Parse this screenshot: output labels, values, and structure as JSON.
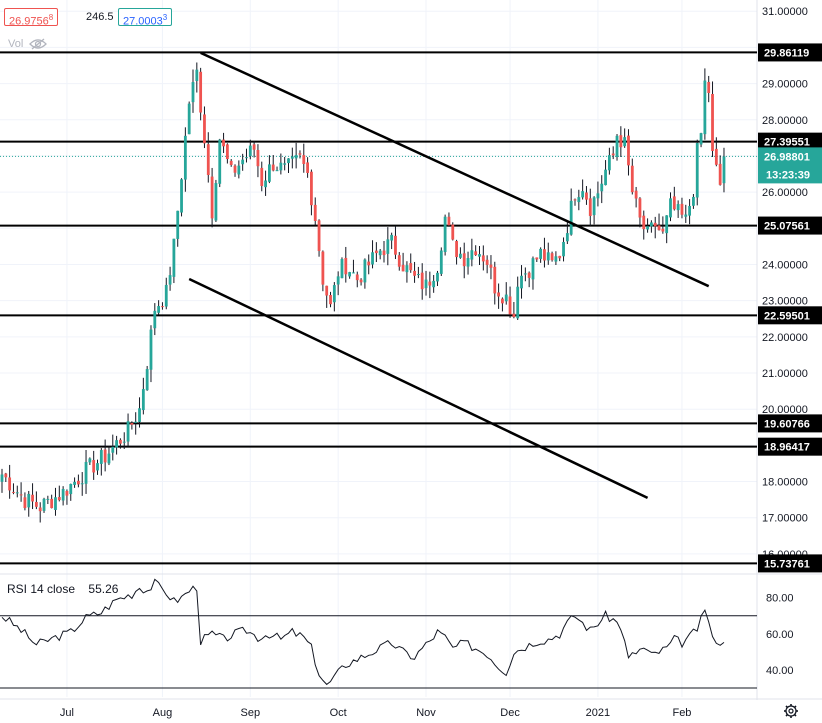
{
  "quote": {
    "bid": "26.9756",
    "bid_sup": "8",
    "spread": "246.5",
    "ask": "27.0003",
    "ask_sup": "3",
    "volume_label": "Vol"
  },
  "colors": {
    "up": "#26a69a",
    "down": "#ef5350",
    "price_tag": "#26a69a",
    "hline": "#000000",
    "current_price_line": "#26a69a"
  },
  "icons": {
    "eye": "eye-crossed-icon",
    "settings": "gear-icon"
  },
  "chart_data": [
    {
      "type": "candlestick",
      "price_axis": {
        "range": [
          15.5,
          31.2
        ],
        "ticks": [
          "31.00000",
          "30.00000",
          "29.00000",
          "28.00000",
          "27.00000",
          "26.00000",
          "25.00000",
          "24.00000",
          "23.00000",
          "22.00000",
          "21.00000",
          "20.00000",
          "19.00000",
          "18.00000",
          "17.00000",
          "16.00000"
        ],
        "tick_values": [
          31,
          30,
          29,
          28,
          27,
          26,
          25,
          24,
          23,
          22,
          21,
          20,
          19,
          18,
          17,
          16
        ]
      },
      "time_axis": {
        "labels": [
          "Jul",
          "Aug",
          "Sep",
          "Oct",
          "Nov",
          "Dec",
          "2021",
          "Feb"
        ],
        "label_bar_index": [
          17,
          42,
          65,
          88,
          111,
          133,
          156,
          178
        ],
        "bar_count": 190
      },
      "horizontal_levels": [
        {
          "value": 29.86119,
          "label": "29.86119"
        },
        {
          "value": 27.39551,
          "label": "27.39551"
        },
        {
          "value": 25.07561,
          "label": "25.07561"
        },
        {
          "value": 22.59501,
          "label": "22.59501"
        },
        {
          "value": 19.60766,
          "label": "19.60766"
        },
        {
          "value": 18.96417,
          "label": "18.96417"
        },
        {
          "value": 15.73761,
          "label": "15.73761"
        }
      ],
      "current_price": {
        "value": 26.98801,
        "label": "26.98801",
        "countdown": "13:23:39"
      },
      "trendlines": [
        {
          "from": {
            "bar": 52,
            "price": 29.85
          },
          "to": {
            "bar": 185,
            "price": 23.4
          }
        },
        {
          "from": {
            "bar": 49,
            "price": 23.6
          },
          "to": {
            "bar": 169,
            "price": 17.55
          }
        }
      ],
      "anchor_closes": [
        [
          0,
          18.2
        ],
        [
          6,
          17.5
        ],
        [
          10,
          17.3
        ],
        [
          16,
          17.7
        ],
        [
          22,
          18.3
        ],
        [
          27,
          18.7
        ],
        [
          33,
          19.4
        ],
        [
          36,
          20.0
        ],
        [
          38,
          21.3
        ],
        [
          40,
          22.8
        ],
        [
          43,
          23.2
        ],
        [
          45,
          24.5
        ],
        [
          47,
          26.5
        ],
        [
          49,
          28.5
        ],
        [
          51,
          29.3
        ],
        [
          53,
          27.5
        ],
        [
          55,
          25.5
        ],
        [
          57,
          27.5
        ],
        [
          60,
          26.5
        ],
        [
          63,
          26.9
        ],
        [
          66,
          27.2
        ],
        [
          68,
          26.3
        ],
        [
          71,
          26.8
        ],
        [
          74,
          26.6
        ],
        [
          78,
          26.9
        ],
        [
          80,
          26.5
        ],
        [
          82,
          25.3
        ],
        [
          84,
          23.6
        ],
        [
          86,
          22.8
        ],
        [
          88,
          23.8
        ],
        [
          90,
          24.0
        ],
        [
          93,
          23.6
        ],
        [
          96,
          24.0
        ],
        [
          99,
          24.4
        ],
        [
          102,
          24.6
        ],
        [
          105,
          24.0
        ],
        [
          108,
          23.6
        ],
        [
          111,
          23.4
        ],
        [
          114,
          24.0
        ],
        [
          116,
          25.3
        ],
        [
          118,
          24.5
        ],
        [
          121,
          24.2
        ],
        [
          124,
          24.5
        ],
        [
          127,
          24.1
        ],
        [
          129,
          23.4
        ],
        [
          132,
          23.1
        ],
        [
          134,
          22.6
        ],
        [
          135,
          23.6
        ],
        [
          138,
          23.9
        ],
        [
          141,
          24.3
        ],
        [
          144,
          24.0
        ],
        [
          146,
          24.3
        ],
        [
          148,
          25.1
        ],
        [
          150,
          26.0
        ],
        [
          152,
          26.2
        ],
        [
          154,
          25.6
        ],
        [
          156,
          26.0
        ],
        [
          158,
          26.6
        ],
        [
          160,
          27.0
        ],
        [
          161,
          27.6
        ],
        [
          163,
          27.3
        ],
        [
          165,
          26.0
        ],
        [
          167,
          25.2
        ],
        [
          169,
          24.8
        ],
        [
          171,
          25.1
        ],
        [
          173,
          24.8
        ],
        [
          175,
          25.6
        ],
        [
          177,
          25.4
        ],
        [
          179,
          25.2
        ],
        [
          181,
          26.1
        ],
        [
          182,
          27.1
        ],
        [
          183,
          27.6
        ],
        [
          184,
          29.0
        ],
        [
          185,
          28.8
        ],
        [
          186,
          27.0
        ],
        [
          187,
          26.6
        ],
        [
          188,
          26.2
        ],
        [
          189,
          26.98801
        ]
      ]
    },
    {
      "type": "line",
      "title": "RSI 14 close",
      "value_label": "55.26",
      "value": 55.26,
      "range": [
        25,
        92
      ],
      "ticks": [
        "80.00",
        "60.00",
        "40.00"
      ],
      "tick_values": [
        80,
        60,
        40
      ],
      "bands": [
        70,
        30
      ],
      "anchors": [
        [
          0,
          70
        ],
        [
          5,
          62
        ],
        [
          9,
          54
        ],
        [
          14,
          58
        ],
        [
          18,
          61
        ],
        [
          22,
          69
        ],
        [
          26,
          72
        ],
        [
          30,
          79
        ],
        [
          34,
          82
        ],
        [
          36,
          86
        ],
        [
          38,
          84
        ],
        [
          40,
          88
        ],
        [
          43,
          83
        ],
        [
          45,
          78
        ],
        [
          47,
          80
        ],
        [
          49,
          84
        ],
        [
          51,
          86
        ],
        [
          52,
          56
        ],
        [
          55,
          60
        ],
        [
          58,
          57
        ],
        [
          61,
          60
        ],
        [
          64,
          62
        ],
        [
          67,
          58
        ],
        [
          70,
          60
        ],
        [
          73,
          57
        ],
        [
          76,
          61
        ],
        [
          79,
          58
        ],
        [
          81,
          52
        ],
        [
          83,
          38
        ],
        [
          85,
          31
        ],
        [
          87,
          36
        ],
        [
          90,
          43
        ],
        [
          93,
          46
        ],
        [
          96,
          49
        ],
        [
          99,
          52
        ],
        [
          102,
          55
        ],
        [
          105,
          50
        ],
        [
          108,
          47
        ],
        [
          110,
          52
        ],
        [
          112,
          56
        ],
        [
          114,
          61
        ],
        [
          116,
          58
        ],
        [
          118,
          52
        ],
        [
          121,
          55
        ],
        [
          124,
          52
        ],
        [
          127,
          49
        ],
        [
          130,
          42
        ],
        [
          132,
          39
        ],
        [
          134,
          50
        ],
        [
          137,
          53
        ],
        [
          140,
          56
        ],
        [
          143,
          57
        ],
        [
          146,
          60
        ],
        [
          148,
          66
        ],
        [
          150,
          70
        ],
        [
          152,
          66
        ],
        [
          154,
          62
        ],
        [
          156,
          66
        ],
        [
          158,
          70
        ],
        [
          160,
          68
        ],
        [
          162,
          64
        ],
        [
          164,
          46
        ],
        [
          166,
          50
        ],
        [
          168,
          52
        ],
        [
          170,
          48
        ],
        [
          172,
          50
        ],
        [
          174,
          52
        ],
        [
          176,
          57
        ],
        [
          178,
          55
        ],
        [
          180,
          58
        ],
        [
          182,
          63
        ],
        [
          184,
          72
        ],
        [
          185,
          68
        ],
        [
          186,
          58
        ],
        [
          187,
          53
        ],
        [
          188,
          56
        ],
        [
          189,
          55.26
        ]
      ]
    }
  ]
}
